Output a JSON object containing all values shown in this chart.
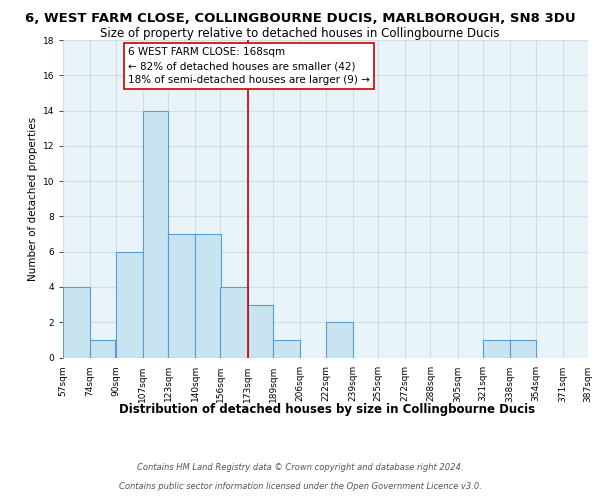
{
  "title_line1": "6, WEST FARM CLOSE, COLLINGBOURNE DUCIS, MARLBOROUGH, SN8 3DU",
  "title_line2": "Size of property relative to detached houses in Collingbourne Ducis",
  "xlabel": "Distribution of detached houses by size in Collingbourne Ducis",
  "ylabel": "Number of detached properties",
  "bin_edges": [
    57,
    74,
    90,
    107,
    123,
    140,
    156,
    173,
    189,
    206,
    222,
    239,
    255,
    272,
    288,
    305,
    321,
    338,
    354,
    371,
    387
  ],
  "bin_labels": [
    "57sqm",
    "74sqm",
    "90sqm",
    "107sqm",
    "123sqm",
    "140sqm",
    "156sqm",
    "173sqm",
    "189sqm",
    "206sqm",
    "222sqm",
    "239sqm",
    "255sqm",
    "272sqm",
    "288sqm",
    "305sqm",
    "321sqm",
    "338sqm",
    "354sqm",
    "371sqm",
    "387sqm"
  ],
  "counts": [
    4,
    1,
    6,
    14,
    7,
    7,
    4,
    3,
    1,
    0,
    2,
    0,
    0,
    0,
    0,
    0,
    1,
    1,
    0,
    0
  ],
  "bar_color": "#c8e4f0",
  "bar_edge_color": "#5b9bd5",
  "reference_line_x": 173,
  "reference_line_color": "#cc0000",
  "annotation_title": "6 WEST FARM CLOSE: 168sqm",
  "annotation_line1": "← 82% of detached houses are smaller (42)",
  "annotation_line2": "18% of semi-detached houses are larger (9) →",
  "annotation_box_color": "#ffffff",
  "annotation_box_edge": "#cc0000",
  "ylim": [
    0,
    18
  ],
  "yticks": [
    0,
    2,
    4,
    6,
    8,
    10,
    12,
    14,
    16,
    18
  ],
  "plot_background": "#e8f4f8",
  "grid_color": "#d0dde8",
  "footer_line1": "Contains HM Land Registry data © Crown copyright and database right 2024.",
  "footer_line2": "Contains public sector information licensed under the Open Government Licence v3.0.",
  "title_fontsize": 9.5,
  "subtitle_fontsize": 8.5,
  "xlabel_fontsize": 8.5,
  "ylabel_fontsize": 7.5,
  "tick_fontsize": 6.5,
  "annotation_fontsize": 7.5,
  "footer_fontsize": 6.0
}
